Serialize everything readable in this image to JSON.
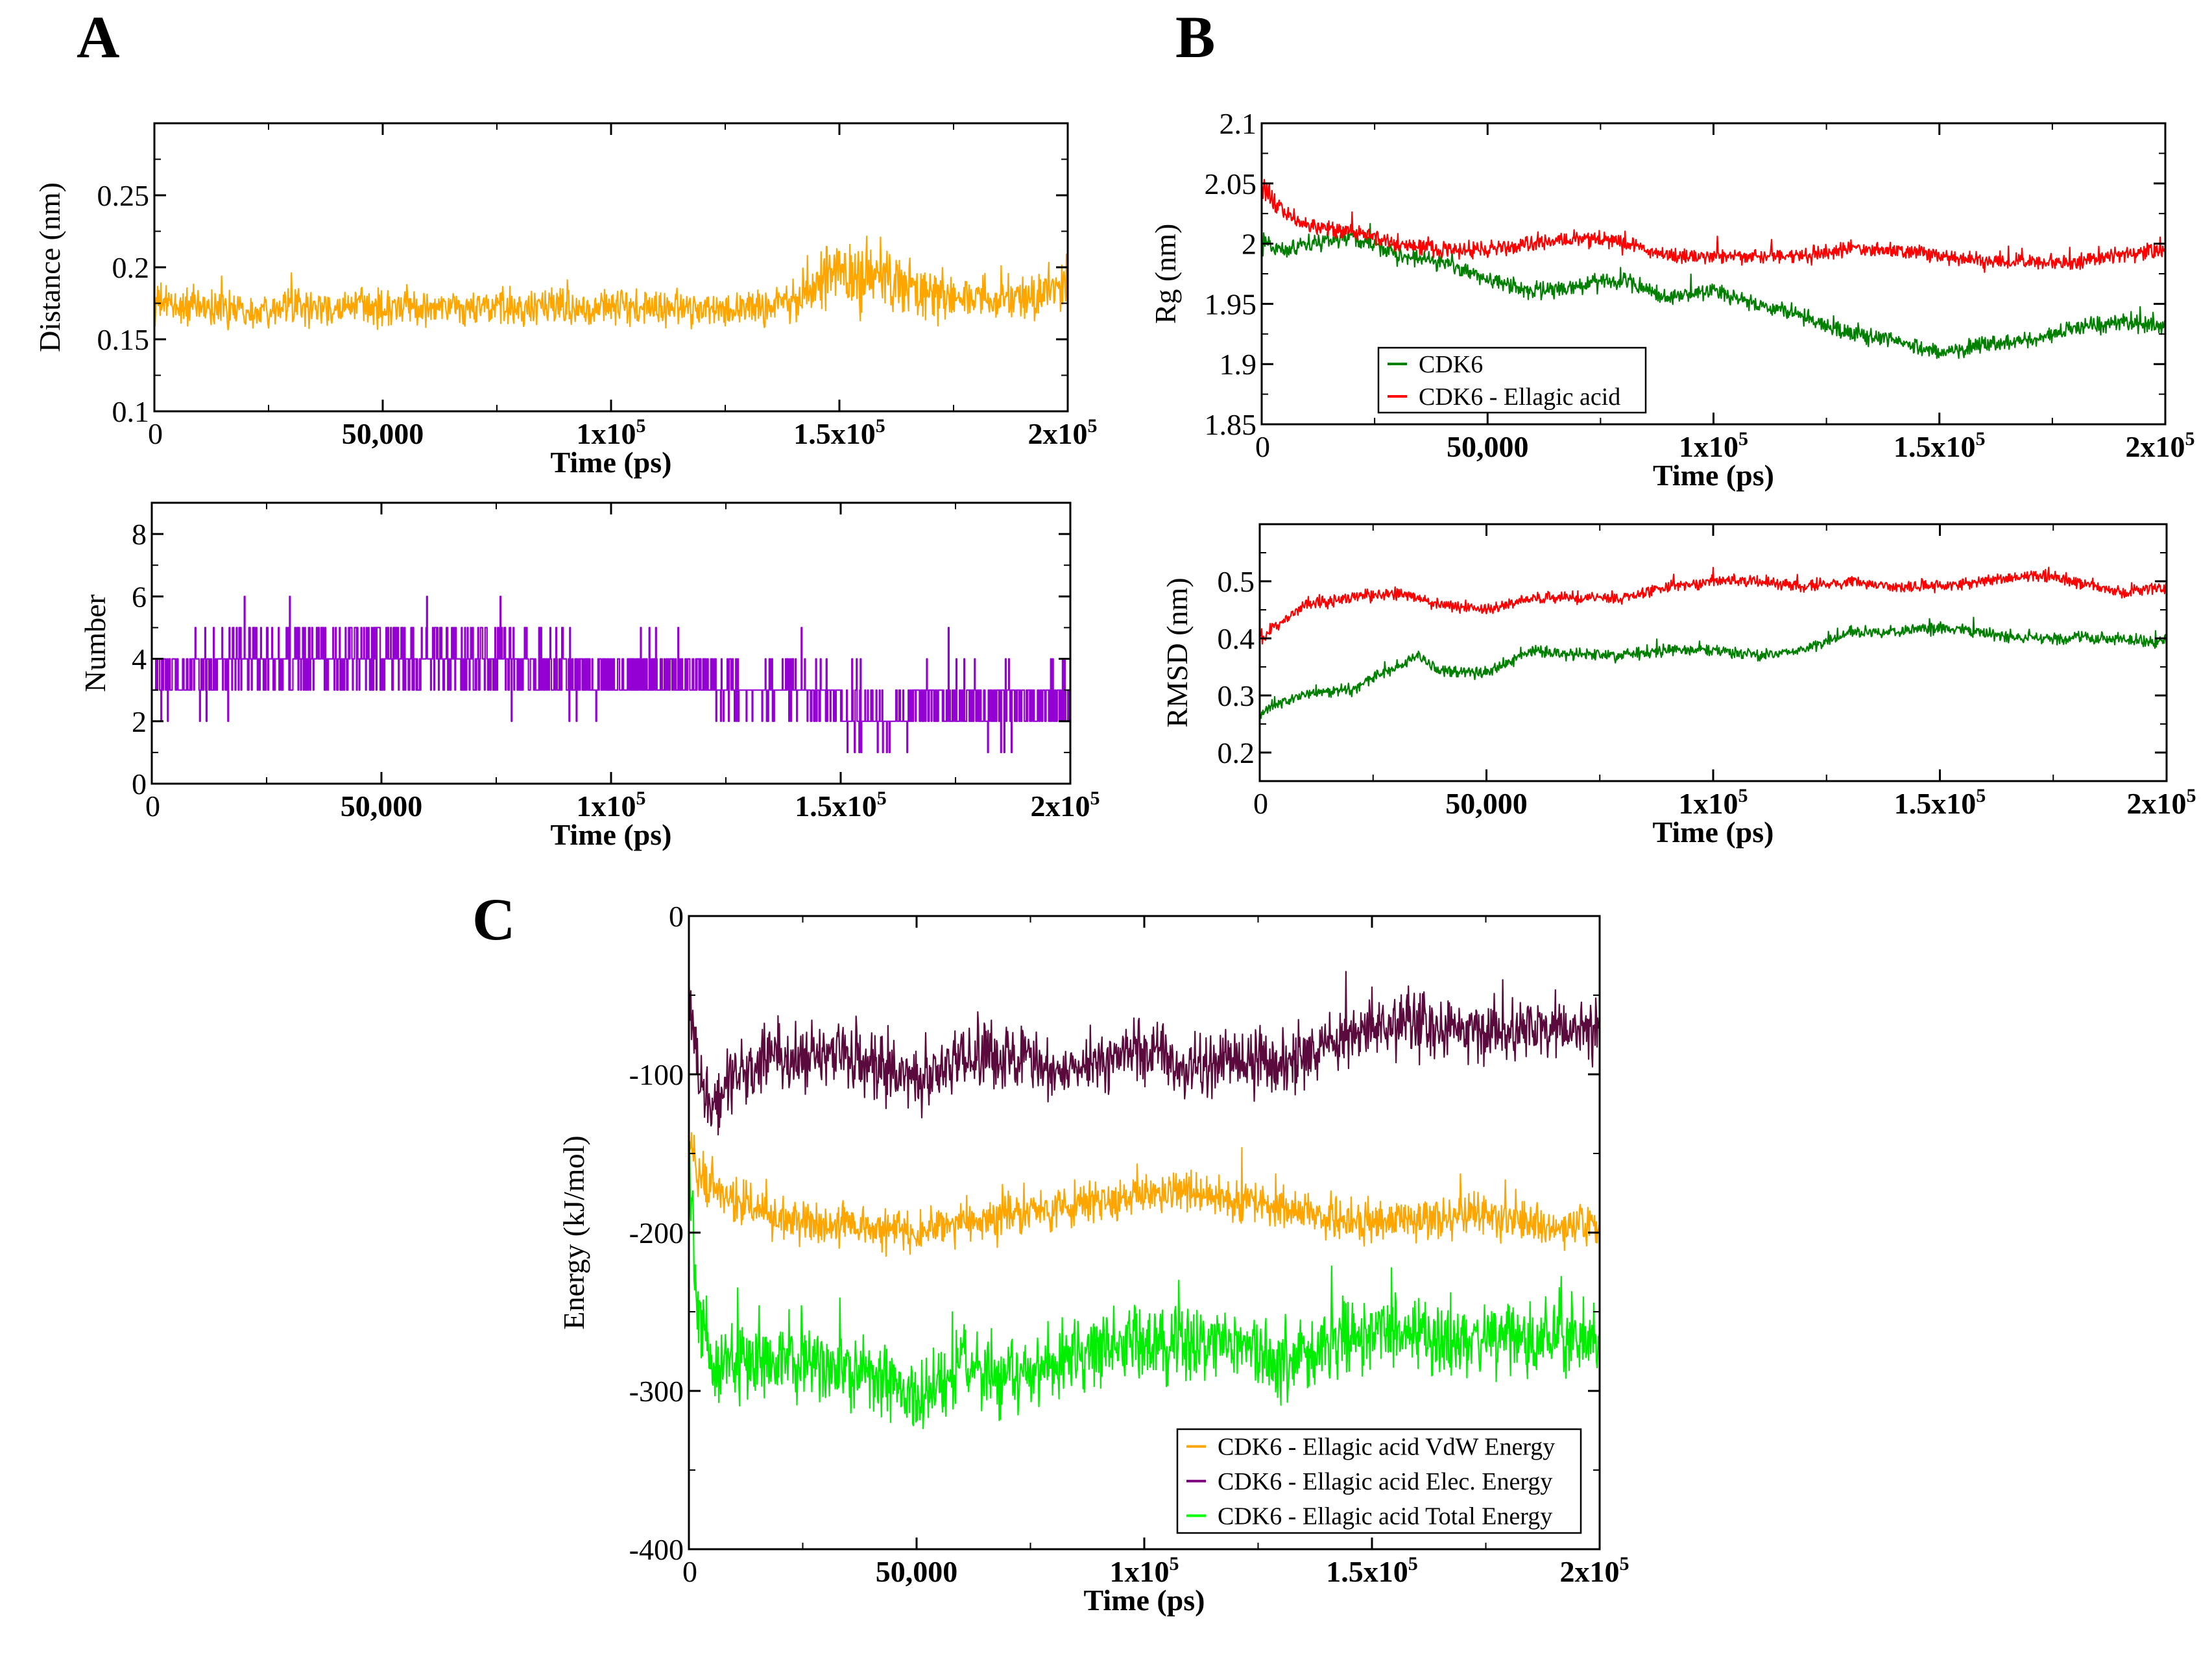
{
  "panels": [
    {
      "id": "A",
      "label": "A"
    },
    {
      "id": "B",
      "label": "B"
    },
    {
      "id": "C",
      "label": "C"
    }
  ],
  "chart_data": [
    {
      "id": "a-distance",
      "type": "line",
      "xlabel": "Time (ps)",
      "ylabel": "Distance (nm)",
      "xlim": [
        0,
        200000
      ],
      "ylim": [
        0.1,
        0.3
      ],
      "xticks": [
        {
          "v": 0,
          "label": "0"
        },
        {
          "v": 50000,
          "label": "50,000"
        },
        {
          "v": 100000,
          "label": "1x10",
          "sup": "5"
        },
        {
          "v": 150000,
          "label": "1.5x10",
          "sup": "5"
        },
        {
          "v": 200000,
          "label": "2x10",
          "sup": "5"
        }
      ],
      "yticks": [
        {
          "v": 0.1,
          "label": "0.1"
        },
        {
          "v": 0.15,
          "label": "0.15"
        },
        {
          "v": 0.2,
          "label": "0.2"
        },
        {
          "v": 0.25,
          "label": "0.25"
        }
      ],
      "legend": [],
      "series": [
        {
          "color": "#ffa500",
          "x": [
            0,
            10000,
            20000,
            30000,
            40000,
            50000,
            60000,
            70000,
            80000,
            90000,
            100000,
            110000,
            120000,
            130000,
            140000,
            145000,
            150000,
            160000,
            170000,
            180000,
            190000,
            200000
          ],
          "y": [
            0.175,
            0.172,
            0.171,
            0.172,
            0.171,
            0.172,
            0.172,
            0.171,
            0.172,
            0.173,
            0.172,
            0.171,
            0.172,
            0.172,
            0.176,
            0.19,
            0.195,
            0.192,
            0.18,
            0.178,
            0.18,
            0.185
          ],
          "amp": [
            0.02,
            0.018,
            0.018,
            0.018,
            0.018,
            0.018,
            0.018,
            0.018,
            0.018,
            0.018,
            0.02,
            0.018,
            0.018,
            0.018,
            0.022,
            0.03,
            0.035,
            0.035,
            0.025,
            0.022,
            0.025,
            0.028
          ]
        }
      ]
    },
    {
      "id": "a-hbonds",
      "type": "line",
      "xlabel": "Time (ps)",
      "ylabel": "Number",
      "xlim": [
        0,
        200000
      ],
      "ylim": [
        0,
        9
      ],
      "xticks": [
        {
          "v": 0,
          "label": "0"
        },
        {
          "v": 50000,
          "label": "50,000"
        },
        {
          "v": 100000,
          "label": "1x10",
          "sup": "5"
        },
        {
          "v": 150000,
          "label": "1.5x10",
          "sup": "5"
        },
        {
          "v": 200000,
          "label": "2x10",
          "sup": "5"
        }
      ],
      "yticks": [
        {
          "v": 0,
          "label": "0"
        },
        {
          "v": 2,
          "label": "2"
        },
        {
          "v": 4,
          "label": "4"
        },
        {
          "v": 6,
          "label": "6"
        },
        {
          "v": 8,
          "label": "8"
        }
      ],
      "legend": [],
      "series": [
        {
          "color": "#9400d3",
          "x": [
            0,
            10000,
            20000,
            30000,
            40000,
            50000,
            60000,
            70000,
            80000,
            90000,
            100000,
            110000,
            120000,
            130000,
            140000,
            150000,
            160000,
            170000,
            180000,
            190000,
            200000
          ],
          "y": [
            3,
            3.5,
            4,
            4,
            4,
            4,
            4,
            4,
            4,
            3.5,
            3.5,
            3.5,
            3.5,
            3,
            3,
            2.5,
            2,
            2.5,
            2.5,
            2.5,
            2.5
          ],
          "amp": [
            1.5,
            1.8,
            2,
            2,
            2,
            2,
            2,
            2,
            2,
            1.8,
            1.5,
            1.5,
            1.5,
            1.5,
            1.5,
            1.5,
            1.5,
            1.5,
            1.5,
            1.5,
            1.5
          ]
        }
      ]
    },
    {
      "id": "b-rg",
      "type": "line",
      "xlabel": "Time (ps)",
      "ylabel": "Rg (nm)",
      "xlim": [
        0,
        200000
      ],
      "ylim": [
        1.85,
        2.1
      ],
      "xticks": [
        {
          "v": 0,
          "label": "0"
        },
        {
          "v": 50000,
          "label": "50,000"
        },
        {
          "v": 100000,
          "label": "1x10",
          "sup": "5"
        },
        {
          "v": 150000,
          "label": "1.5x10",
          "sup": "5"
        },
        {
          "v": 200000,
          "label": "2x10",
          "sup": "5"
        }
      ],
      "yticks": [
        {
          "v": 1.85,
          "label": "1.85"
        },
        {
          "v": 1.9,
          "label": "1.9"
        },
        {
          "v": 1.95,
          "label": "1.95"
        },
        {
          "v": 2.0,
          "label": "2"
        },
        {
          "v": 2.05,
          "label": "2.05"
        },
        {
          "v": 2.1,
          "label": "2.1"
        }
      ],
      "legend": [
        {
          "label": "CDK6",
          "color": "#008000"
        },
        {
          "label": "CDK6 - Ellagic acid",
          "color": "#ff0000"
        }
      ],
      "series": [
        {
          "name": "CDK6",
          "color": "#008000",
          "x": [
            0,
            5000,
            10000,
            20000,
            30000,
            40000,
            50000,
            60000,
            70000,
            80000,
            90000,
            100000,
            110000,
            120000,
            130000,
            140000,
            150000,
            160000,
            170000,
            180000,
            190000,
            200000
          ],
          "y": [
            2.0,
            1.995,
            2.0,
            2.005,
            1.99,
            1.985,
            1.97,
            1.96,
            1.965,
            1.97,
            1.955,
            1.96,
            1.95,
            1.94,
            1.925,
            1.92,
            1.91,
            1.915,
            1.92,
            1.93,
            1.935,
            1.93
          ],
          "amp": [
            0.012,
            0.01,
            0.01,
            0.01,
            0.01,
            0.01,
            0.01,
            0.01,
            0.01,
            0.01,
            0.01,
            0.01,
            0.01,
            0.01,
            0.01,
            0.01,
            0.01,
            0.01,
            0.01,
            0.01,
            0.01,
            0.01
          ]
        },
        {
          "name": "CDK6 - Ellagic acid",
          "color": "#ff0000",
          "x": [
            0,
            5000,
            10000,
            20000,
            30000,
            40000,
            50000,
            60000,
            70000,
            80000,
            90000,
            100000,
            110000,
            120000,
            130000,
            140000,
            150000,
            160000,
            170000,
            180000,
            190000,
            200000
          ],
          "y": [
            2.05,
            2.025,
            2.015,
            2.01,
            2.0,
            1.995,
            1.995,
            2.0,
            2.005,
            2.0,
            1.99,
            1.99,
            1.99,
            1.99,
            1.995,
            1.995,
            1.99,
            1.985,
            1.985,
            1.985,
            1.99,
            1.995
          ],
          "amp": [
            0.02,
            0.01,
            0.01,
            0.01,
            0.01,
            0.01,
            0.01,
            0.01,
            0.01,
            0.01,
            0.01,
            0.01,
            0.01,
            0.01,
            0.01,
            0.01,
            0.01,
            0.01,
            0.01,
            0.01,
            0.01,
            0.01
          ]
        }
      ]
    },
    {
      "id": "b-rmsd",
      "type": "line",
      "xlabel": "Time (ps)",
      "ylabel": "RMSD (nm)",
      "xlim": [
        0,
        200000
      ],
      "ylim": [
        0.15,
        0.6
      ],
      "xticks": [
        {
          "v": 0,
          "label": "0"
        },
        {
          "v": 50000,
          "label": "50,000"
        },
        {
          "v": 100000,
          "label": "1x10",
          "sup": "5"
        },
        {
          "v": 150000,
          "label": "1.5x10",
          "sup": "5"
        },
        {
          "v": 200000,
          "label": "2x10",
          "sup": "5"
        }
      ],
      "yticks": [
        {
          "v": 0.2,
          "label": "0.2"
        },
        {
          "v": 0.3,
          "label": "0.3"
        },
        {
          "v": 0.4,
          "label": "0.4"
        },
        {
          "v": 0.5,
          "label": "0.5"
        }
      ],
      "legend": [],
      "series": [
        {
          "name": "CDK6",
          "color": "#008000",
          "x": [
            0,
            5000,
            10000,
            20000,
            30000,
            35000,
            40000,
            50000,
            60000,
            70000,
            80000,
            90000,
            100000,
            110000,
            120000,
            130000,
            140000,
            150000,
            160000,
            170000,
            180000,
            190000,
            200000
          ],
          "y": [
            0.27,
            0.29,
            0.3,
            0.31,
            0.35,
            0.37,
            0.34,
            0.34,
            0.38,
            0.37,
            0.37,
            0.38,
            0.38,
            0.37,
            0.38,
            0.41,
            0.41,
            0.42,
            0.41,
            0.4,
            0.4,
            0.4,
            0.39
          ],
          "amp": [
            0.02,
            0.015,
            0.015,
            0.015,
            0.015,
            0.015,
            0.015,
            0.015,
            0.015,
            0.015,
            0.015,
            0.015,
            0.015,
            0.015,
            0.015,
            0.015,
            0.015,
            0.015,
            0.015,
            0.015,
            0.015,
            0.015,
            0.015
          ]
        },
        {
          "name": "CDK6 - Ellagic acid",
          "color": "#ff0000",
          "x": [
            0,
            5000,
            10000,
            20000,
            30000,
            40000,
            50000,
            60000,
            70000,
            80000,
            90000,
            100000,
            110000,
            120000,
            130000,
            140000,
            150000,
            160000,
            170000,
            180000,
            190000,
            200000
          ],
          "y": [
            0.4,
            0.43,
            0.46,
            0.47,
            0.48,
            0.46,
            0.45,
            0.47,
            0.47,
            0.47,
            0.49,
            0.5,
            0.5,
            0.49,
            0.5,
            0.49,
            0.49,
            0.5,
            0.51,
            0.5,
            0.48,
            0.49
          ],
          "amp": [
            0.02,
            0.015,
            0.015,
            0.015,
            0.015,
            0.015,
            0.015,
            0.015,
            0.015,
            0.015,
            0.015,
            0.015,
            0.015,
            0.015,
            0.015,
            0.015,
            0.015,
            0.015,
            0.015,
            0.015,
            0.015,
            0.015
          ]
        }
      ]
    },
    {
      "id": "c-energy",
      "type": "line",
      "xlabel": "Time (ps)",
      "ylabel": "Energy (kJ/mol)",
      "xlim": [
        0,
        200000
      ],
      "ylim": [
        -400,
        0
      ],
      "xticks": [
        {
          "v": 0,
          "label": "0"
        },
        {
          "v": 50000,
          "label": "50,000"
        },
        {
          "v": 100000,
          "label": "1x10",
          "sup": "5"
        },
        {
          "v": 150000,
          "label": "1.5x10",
          "sup": "5"
        },
        {
          "v": 200000,
          "label": "2x10",
          "sup": "5"
        }
      ],
      "yticks": [
        {
          "v": -400,
          "label": "-400"
        },
        {
          "v": -300,
          "label": "-300"
        },
        {
          "v": -200,
          "label": "-200"
        },
        {
          "v": -100,
          "label": "-100"
        },
        {
          "v": 0,
          "label": "0"
        }
      ],
      "legend": [
        {
          "label": "CDK6 - Ellagic acid VdW Energy",
          "color": "#ffa500"
        },
        {
          "label": "CDK6 - Ellagic acid Elec. Energy",
          "color": "#800080"
        },
        {
          "label": "CDK6 - Ellagic acid Total Energy",
          "color": "#00ff00"
        }
      ],
      "series": [
        {
          "name": "CDK6 - Ellagic acid Elec. Energy",
          "color": "#5a0a3c",
          "x": [
            0,
            2000,
            5000,
            10000,
            20000,
            30000,
            40000,
            50000,
            60000,
            70000,
            80000,
            90000,
            100000,
            110000,
            120000,
            130000,
            140000,
            150000,
            160000,
            170000,
            180000,
            190000,
            200000
          ],
          "y": [
            -40,
            -100,
            -120,
            -100,
            -90,
            -85,
            -95,
            -105,
            -90,
            -85,
            -100,
            -90,
            -85,
            -95,
            -90,
            -95,
            -80,
            -70,
            -70,
            -70,
            -75,
            -70,
            -70
          ],
          "amp": [
            30,
            30,
            30,
            30,
            30,
            30,
            30,
            30,
            30,
            30,
            30,
            30,
            30,
            30,
            30,
            30,
            30,
            30,
            30,
            30,
            30,
            30,
            30
          ]
        },
        {
          "name": "CDK6 - Ellagic acid VdW Energy",
          "color": "#ffa500",
          "x": [
            0,
            2000,
            5000,
            10000,
            20000,
            30000,
            40000,
            50000,
            60000,
            70000,
            80000,
            90000,
            100000,
            110000,
            120000,
            130000,
            140000,
            150000,
            160000,
            170000,
            180000,
            190000,
            200000
          ],
          "y": [
            -140,
            -160,
            -170,
            -180,
            -190,
            -195,
            -195,
            -200,
            -195,
            -190,
            -185,
            -180,
            -175,
            -175,
            -180,
            -185,
            -190,
            -195,
            -190,
            -190,
            -190,
            -195,
            -195
          ],
          "amp": [
            20,
            20,
            20,
            20,
            20,
            20,
            20,
            20,
            20,
            20,
            20,
            20,
            20,
            20,
            20,
            20,
            20,
            20,
            20,
            20,
            20,
            20,
            20
          ]
        },
        {
          "name": "CDK6 - Ellagic acid Total Energy",
          "color": "#00ee00",
          "x": [
            0,
            2000,
            5000,
            10000,
            20000,
            30000,
            40000,
            50000,
            60000,
            70000,
            80000,
            90000,
            100000,
            110000,
            120000,
            130000,
            140000,
            150000,
            160000,
            170000,
            180000,
            190000,
            200000
          ],
          "y": [
            -160,
            -250,
            -280,
            -285,
            -280,
            -285,
            -290,
            -305,
            -285,
            -290,
            -285,
            -275,
            -270,
            -270,
            -270,
            -280,
            -270,
            -260,
            -265,
            -270,
            -265,
            -265,
            -265
          ],
          "amp": [
            35,
            35,
            35,
            35,
            35,
            35,
            35,
            35,
            35,
            35,
            35,
            35,
            35,
            35,
            35,
            35,
            35,
            35,
            35,
            35,
            35,
            35,
            35
          ]
        }
      ]
    }
  ]
}
